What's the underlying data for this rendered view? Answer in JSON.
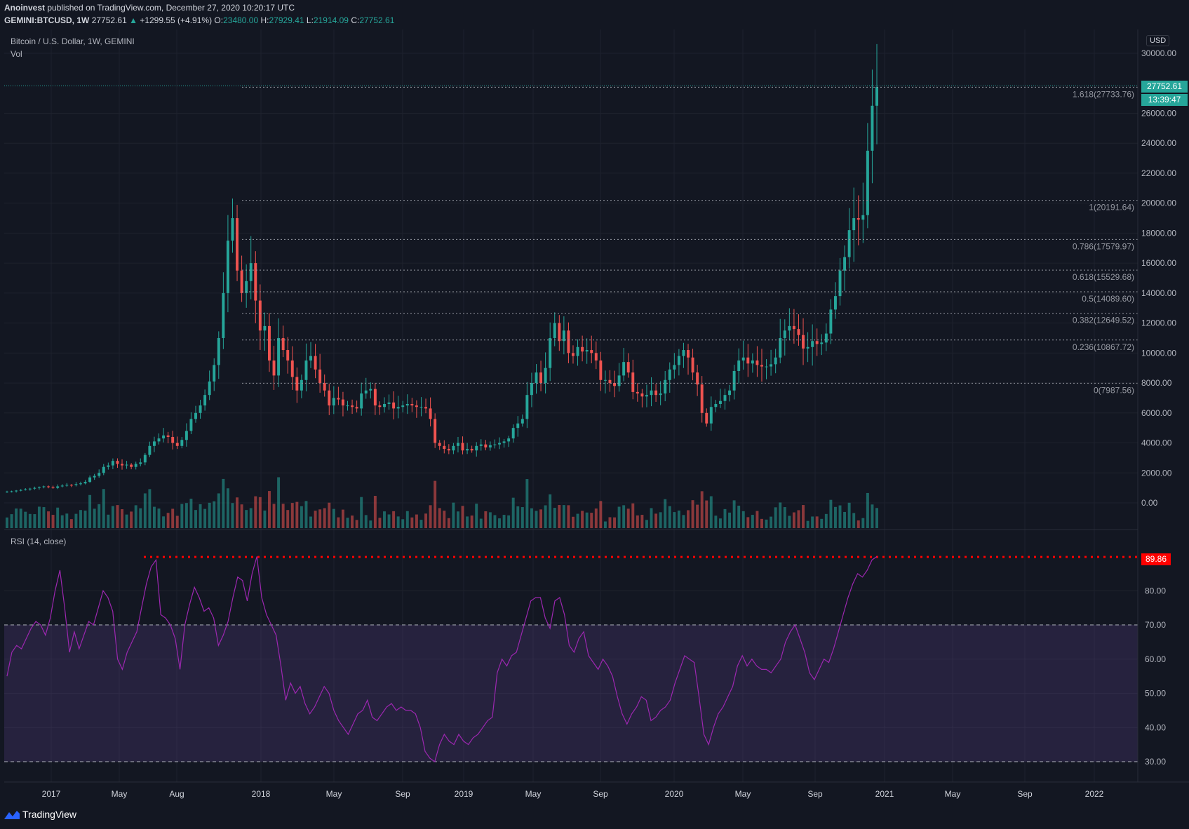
{
  "header": {
    "publisher": "Anoinvest",
    "published_text": "published on TradingView.com, December 27, 2020 10:20:17 UTC",
    "symbol": "GEMINI:BTCUSD, 1W",
    "last": "27752.61",
    "change": "+1299.55 (+4.91%)",
    "o_label": "O:",
    "o_val": "23480.00",
    "h_label": "H:",
    "h_val": "27929.41",
    "l_label": "L:",
    "l_val": "21914.09",
    "c_label": "C:",
    "c_val": "27752.61"
  },
  "pane": {
    "title": "Bitcoin / U.S. Dollar, 1W, GEMINI",
    "vol_label": "Vol",
    "rsi_label": "RSI (14, close)",
    "currency": "USD",
    "price_badge": "27752.61",
    "countdown_badge": "13:39:47",
    "rsi_badge": "89.86"
  },
  "brand": {
    "name": "TradingView"
  },
  "colors": {
    "up": "#26a69a",
    "down": "#ef5350",
    "rsi_line": "#9c27b0",
    "rsi_band": "#7e57c2",
    "max_line": "#ff0000"
  },
  "chart_data": {
    "type": "candlestick",
    "price_axis": {
      "ticks": [
        "30000.00",
        "26000.00",
        "24000.00",
        "22000.00",
        "20000.00",
        "18000.00",
        "16000.00",
        "14000.00",
        "12000.00",
        "10000.00",
        "8000.00",
        "6000.00",
        "4000.00",
        "2000.00",
        "0.00"
      ]
    },
    "time_axis": {
      "ticks": [
        "2017",
        "May",
        "Aug",
        "2018",
        "May",
        "Sep",
        "2019",
        "May",
        "Sep",
        "2020",
        "May",
        "Sep",
        "2021",
        "May",
        "Sep",
        "2022"
      ]
    },
    "fib_levels": [
      {
        "label": "1.618(27733.76)",
        "value": 27733.76
      },
      {
        "label": "1(20191.64)",
        "value": 20191.64
      },
      {
        "label": "0.786(17579.97)",
        "value": 17579.97
      },
      {
        "label": "0.618(15529.68)",
        "value": 15529.68
      },
      {
        "label": "0.5(14089.60)",
        "value": 14089.6
      },
      {
        "label": "0.382(12649.52)",
        "value": 12649.52
      },
      {
        "label": "0.236(10867.72)",
        "value": 10867.72
      },
      {
        "label": "0(7987.56)",
        "value": 7987.56
      }
    ],
    "rsi_axis": {
      "ticks": [
        "80.00",
        "70.00",
        "60.00",
        "50.00",
        "40.00",
        "30.00"
      ],
      "upper": 70,
      "lower": 30,
      "max_value": 89.86
    },
    "series": [
      {
        "name": "BTCUSD close (weekly, approx.)",
        "values": [
          750,
          770,
          820,
          860,
          900,
          950,
          1000,
          1050,
          1100,
          1050,
          1000,
          1100,
          1150,
          1200,
          1190,
          1250,
          1300,
          1400,
          1700,
          1800,
          2000,
          2400,
          2500,
          2800,
          2600,
          2500,
          2550,
          2400,
          2600,
          2700,
          3200,
          3800,
          4100,
          4300,
          4500,
          4400,
          4000,
          3800,
          4200,
          4800,
          5600,
          6000,
          6500,
          7200,
          8100,
          9200,
          11000,
          14000,
          17500,
          19000,
          15500,
          14000,
          14800,
          16000,
          13500,
          11500,
          11800,
          9500,
          8500,
          11000,
          10200,
          9500,
          8400,
          7500,
          8200,
          9500,
          9800,
          8900,
          8000,
          7500,
          6500,
          7000,
          6900,
          6500,
          6500,
          6400,
          6300,
          7300,
          7500,
          7600,
          6500,
          6400,
          6600,
          6700,
          6300,
          6400,
          6500,
          6600,
          6500,
          6400,
          6400,
          6300,
          5600,
          4000,
          3800,
          3600,
          3500,
          3800,
          4000,
          3500,
          3600,
          3500,
          3800,
          3900,
          3700,
          3850,
          3900,
          4000,
          4100,
          4300,
          5000,
          5300,
          5600,
          7200,
          8000,
          8700,
          8000,
          9000,
          11000,
          12000,
          10800,
          11500,
          10000,
          9800,
          10400,
          10100,
          10200,
          10000,
          9500,
          8200,
          8200,
          8000,
          7800,
          8500,
          9400,
          8700,
          7400,
          7300,
          7100,
          7200,
          7500,
          7200,
          7300,
          8200,
          8900,
          9200,
          9800,
          10200,
          9700,
          8700,
          7900,
          6000,
          5300,
          6400,
          6600,
          6800,
          7200,
          7500,
          8800,
          9500,
          9700,
          9300,
          9500,
          9200,
          9100,
          9100,
          9250,
          9700,
          11000,
          11500,
          11800,
          11600,
          11200,
          10300,
          10400,
          10800,
          10600,
          10700,
          11300,
          12900,
          13800,
          15500,
          16400,
          18200,
          19000,
          18900,
          19200,
          23500,
          26500,
          27752
        ]
      },
      {
        "name": "RSI (14, close)",
        "values": [
          55,
          62,
          64,
          63,
          66,
          69,
          71,
          70,
          67,
          72,
          80,
          86,
          75,
          62,
          68,
          63,
          67,
          71,
          70,
          75,
          80,
          78,
          74,
          60,
          57,
          62,
          65,
          68,
          75,
          82,
          87,
          89,
          73,
          72,
          70,
          66,
          57,
          70,
          76,
          81,
          78,
          74,
          75,
          72,
          64,
          67,
          71,
          78,
          84,
          83,
          77,
          85,
          90,
          78,
          73,
          70,
          67,
          58,
          48,
          53,
          50,
          52,
          47,
          44,
          46,
          49,
          52,
          50,
          45,
          42,
          40,
          38,
          41,
          44,
          45,
          48,
          43,
          42,
          44,
          46,
          47,
          45,
          46,
          45,
          45,
          44,
          40,
          33,
          31,
          30,
          35,
          38,
          36,
          35,
          38,
          36,
          35,
          37,
          38,
          40,
          42,
          43,
          56,
          60,
          58,
          61,
          62,
          67,
          72,
          77,
          78,
          78,
          72,
          69,
          77,
          78,
          73,
          64,
          62,
          66,
          68,
          61,
          59,
          57,
          60,
          58,
          55,
          49,
          44,
          41,
          44,
          46,
          49,
          48,
          42,
          43,
          45,
          46,
          48,
          53,
          57,
          61,
          60,
          59,
          49,
          38,
          35,
          40,
          44,
          46,
          49,
          52,
          58,
          61,
          58,
          60,
          58,
          57,
          57,
          56,
          58,
          60,
          65,
          68,
          70,
          66,
          62,
          56,
          54,
          57,
          60,
          59,
          63,
          68,
          73,
          78,
          82,
          85,
          84,
          86,
          89,
          90
        ]
      }
    ],
    "ylim": [
      -1000,
      30500
    ],
    "rsi_ylim": [
      25,
      95
    ]
  }
}
